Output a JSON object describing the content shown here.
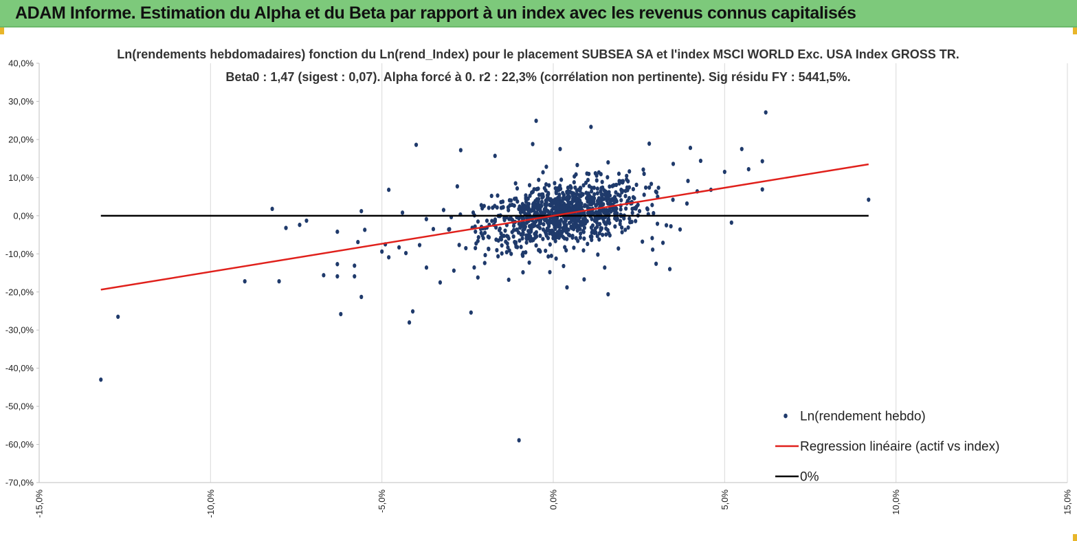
{
  "header": {
    "title": "ADAM Informe. Estimation du Alpha et du Beta par rapport à un index avec les revenus connus capitalisés"
  },
  "colors": {
    "header_bg": "#7dc97b",
    "points": "#1f3a6b",
    "regression": "#e0201b",
    "zero_line": "#000000"
  },
  "chart_data": {
    "type": "scatter",
    "title_line1": "Ln(rendements hebdomadaires) fonction du Ln(rend_Index) pour le placement SUBSEA SA et l'index MSCI WORLD Exc. USA Index GROSS TR.",
    "title_line2": "Beta0 : 1,47 (sigest : 0,07). Alpha forcé à 0. r2 : 22,3% (corrélation non pertinente). Sig résidu FY : 5441,5%.",
    "xlim": [
      -15,
      15
    ],
    "ylim": [
      -70,
      40
    ],
    "x_ticks": [
      "-15,0%",
      "-10,0%",
      "-5,0%",
      "0,0%",
      "5,0%",
      "10,0%",
      "15,0%"
    ],
    "y_ticks": [
      "40,0%",
      "30,0%",
      "20,0%",
      "10,0%",
      "0,0%",
      "-10,0%",
      "-20,0%",
      "-30,0%",
      "-40,0%",
      "-50,0%",
      "-60,0%",
      "-70,0%"
    ],
    "grid_vertical": true,
    "grid_horizontal": false,
    "legend_position": "bottom-right",
    "series": [
      {
        "name": "Ln(rendement hebdo)",
        "kind": "scatter",
        "points": [
          [
            -13.2,
            -43.0
          ],
          [
            -12.7,
            -26.5
          ],
          [
            -9.0,
            -17.2
          ],
          [
            -8.2,
            1.8
          ],
          [
            -8.0,
            -17.2
          ],
          [
            -7.8,
            -3.2
          ],
          [
            -7.4,
            -2.4
          ],
          [
            -7.2,
            -1.3
          ],
          [
            -6.7,
            -15.6
          ],
          [
            -6.3,
            -4.2
          ],
          [
            -6.3,
            -12.7
          ],
          [
            -6.3,
            -15.9
          ],
          [
            -6.2,
            -25.8
          ],
          [
            -5.8,
            -15.9
          ],
          [
            -5.8,
            -13.1
          ],
          [
            -5.7,
            -6.9
          ],
          [
            -5.6,
            -21.3
          ],
          [
            -5.5,
            -3.7
          ],
          [
            -5.6,
            1.2
          ],
          [
            -5.0,
            -9.4
          ],
          [
            -4.9,
            -7.5
          ],
          [
            -4.8,
            6.8
          ],
          [
            -4.8,
            -10.9
          ],
          [
            -4.5,
            -8.3
          ],
          [
            -4.4,
            0.8
          ],
          [
            -4.3,
            -9.8
          ],
          [
            -4.2,
            -28.0
          ],
          [
            -4.1,
            -25.1
          ],
          [
            -4.0,
            18.6
          ],
          [
            -3.9,
            -7.7
          ],
          [
            -3.7,
            -13.6
          ],
          [
            -3.5,
            -3.5
          ],
          [
            -3.3,
            -17.5
          ],
          [
            -3.2,
            1.5
          ],
          [
            -2.9,
            -14.4
          ],
          [
            -2.8,
            7.7
          ],
          [
            -2.7,
            17.2
          ],
          [
            -2.4,
            -25.4
          ],
          [
            -2.3,
            0.1
          ],
          [
            -2.2,
            -16.2
          ],
          [
            -2.0,
            -12.4
          ],
          [
            -1.9,
            -5.5
          ],
          [
            -1.8,
            5.2
          ],
          [
            -1.7,
            15.7
          ],
          [
            -1.6,
            -6.5
          ],
          [
            -1.5,
            -9.9
          ],
          [
            -1.3,
            -16.8
          ],
          [
            -1.2,
            -4.3
          ],
          [
            -1.1,
            8.5
          ],
          [
            -1.0,
            -58.9
          ],
          [
            -0.9,
            -10.2
          ],
          [
            -0.8,
            4.4
          ],
          [
            -0.7,
            -12.3
          ],
          [
            -0.6,
            18.8
          ],
          [
            -0.5,
            24.9
          ],
          [
            -0.5,
            -7.8
          ],
          [
            -0.3,
            11.4
          ],
          [
            -0.2,
            3.6
          ],
          [
            -0.1,
            -14.8
          ],
          [
            0.1,
            -5.6
          ],
          [
            0.2,
            17.5
          ],
          [
            0.3,
            -13.2
          ],
          [
            0.4,
            -18.8
          ],
          [
            0.6,
            -8.4
          ],
          [
            0.7,
            13.3
          ],
          [
            0.9,
            -16.7
          ],
          [
            1.1,
            23.3
          ],
          [
            1.2,
            -4.5
          ],
          [
            1.3,
            -10.2
          ],
          [
            1.5,
            -13.6
          ],
          [
            1.6,
            14.0
          ],
          [
            1.6,
            -20.6
          ],
          [
            1.9,
            -8.6
          ],
          [
            2.1,
            -3.7
          ],
          [
            2.4,
            -1.4
          ],
          [
            2.6,
            -6.8
          ],
          [
            2.8,
            18.9
          ],
          [
            2.9,
            -8.9
          ],
          [
            3.0,
            -12.6
          ],
          [
            3.2,
            -7.1
          ],
          [
            3.3,
            -2.5
          ],
          [
            3.4,
            -14.0
          ],
          [
            3.5,
            13.6
          ],
          [
            3.7,
            -3.6
          ],
          [
            3.9,
            3.2
          ],
          [
            4.0,
            17.8
          ],
          [
            4.2,
            6.4
          ],
          [
            4.3,
            14.4
          ],
          [
            4.6,
            6.8
          ],
          [
            5.0,
            11.5
          ],
          [
            5.2,
            -1.8
          ],
          [
            5.5,
            17.5
          ],
          [
            5.7,
            12.2
          ],
          [
            6.1,
            14.3
          ],
          [
            6.2,
            27.1
          ],
          [
            6.1,
            6.9
          ],
          [
            9.2,
            4.2
          ]
        ],
        "cluster": {
          "count": 950,
          "x_center": 0.3,
          "y_center": 0.5,
          "x_sd": 1.15,
          "y_sd": 4.0
        }
      },
      {
        "name": "Regression linéaire (actif vs index)",
        "kind": "line",
        "x": [
          -13.2,
          9.2
        ],
        "y": [
          -19.4,
          13.5
        ]
      },
      {
        "name": "0%",
        "kind": "line",
        "x": [
          -13.2,
          9.2
        ],
        "y": [
          0,
          0
        ]
      }
    ]
  }
}
